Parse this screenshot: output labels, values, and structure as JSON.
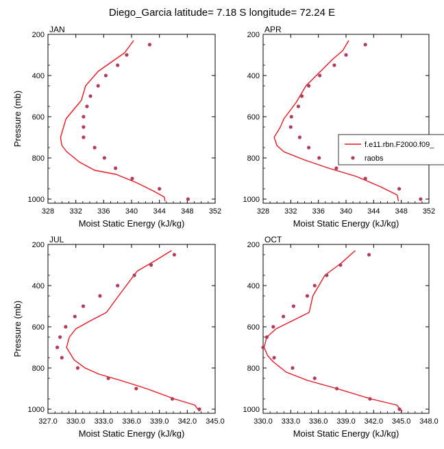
{
  "figure": {
    "title": "Diego_Garcia  latitude= 7.18 S longitude= 72.24 E"
  },
  "legend": {
    "placement": "inside APR panel, right side, clipped at figure edge",
    "entries": [
      {
        "label": "f.e11.rbn.F2000.f09_",
        "style": "line",
        "color": "#e8151d"
      },
      {
        "label": "raobs",
        "style": "marker",
        "color": "#b33c5c"
      }
    ]
  },
  "colors": {
    "model_line": "#e8151d",
    "raobs_marker": "#b33c5c"
  },
  "chart_data": [
    {
      "type": "line",
      "panel": "JAN",
      "xlabel": "Moist Static Energy (kJ/kg)",
      "ylabel": "Pressure (mb)",
      "xlim": [
        328,
        352
      ],
      "ylim": [
        200,
        1020
      ],
      "y_inverted": true,
      "xticks": [
        328,
        332,
        336,
        340,
        344,
        348,
        352
      ],
      "xtick_labels": [
        "328",
        "332",
        "336",
        "340",
        "344",
        "348",
        "352"
      ],
      "yticks": [
        200,
        400,
        600,
        800,
        1000
      ],
      "ytick_labels": [
        "200",
        "400",
        "600",
        "800",
        "1000"
      ],
      "series": [
        {
          "name": "f.e11.rbn.F2000.f09_",
          "kind": "line",
          "x": [
            340.3,
            339.0,
            337.3,
            335.2,
            333.4,
            332.8,
            330.6,
            329.8,
            330.0,
            330.7,
            332.5,
            334.7,
            337.8,
            340.7,
            343.1,
            344.7,
            344.8
          ],
          "y": [
            230,
            290,
            330,
            380,
            450,
            520,
            610,
            700,
            740,
            770,
            820,
            860,
            880,
            920,
            960,
            990,
            1010
          ]
        },
        {
          "name": "raobs",
          "kind": "marker",
          "x": [
            342.6,
            339.3,
            338.0,
            336.3,
            335.2,
            334.1,
            333.6,
            333.1,
            333.1,
            333.1,
            334.7,
            336.1,
            337.7,
            340.1,
            344.0,
            348.1
          ],
          "y": [
            250,
            300,
            350,
            400,
            450,
            500,
            550,
            600,
            650,
            700,
            750,
            800,
            850,
            900,
            950,
            1000
          ]
        }
      ]
    },
    {
      "type": "line",
      "panel": "APR",
      "xlabel": "Moist Static Energy (kJ/kg)",
      "ylabel": "",
      "xlim": [
        328,
        352
      ],
      "ylim": [
        200,
        1020
      ],
      "y_inverted": true,
      "xticks": [
        328,
        332,
        336,
        340,
        344,
        348,
        352
      ],
      "xtick_labels": [
        "328",
        "332",
        "336",
        "340",
        "344",
        "348",
        "352"
      ],
      "yticks": [
        200,
        400,
        600,
        800,
        1000
      ],
      "ytick_labels": [
        "200",
        "400",
        "600",
        "800",
        "1000"
      ],
      "series": [
        {
          "name": "f.e11.rbn.F2000.f09_",
          "kind": "line",
          "x": [
            340.4,
            339.5,
            338.1,
            336.3,
            334.2,
            332.8,
            331.0,
            330.5,
            329.6,
            330.0,
            331.0,
            334.0,
            337.5,
            341.5,
            345.0,
            347.4,
            347.6
          ],
          "y": [
            230,
            280,
            320,
            380,
            450,
            530,
            610,
            650,
            700,
            740,
            770,
            810,
            850,
            890,
            940,
            980,
            1010
          ]
        },
        {
          "name": "raobs",
          "kind": "marker",
          "x": [
            342.8,
            340.0,
            338.3,
            336.2,
            334.6,
            333.6,
            333.1,
            332.1,
            332.0,
            333.3,
            334.6,
            336.1,
            338.6,
            342.8,
            347.7,
            350.8
          ],
          "y": [
            250,
            300,
            350,
            400,
            450,
            500,
            550,
            600,
            650,
            700,
            750,
            800,
            850,
            900,
            950,
            1000
          ]
        }
      ]
    },
    {
      "type": "line",
      "panel": "JUL",
      "xlabel": "Moist Static Energy (kJ/kg)",
      "ylabel": "Pressure (mb)",
      "xlim": [
        327,
        345
      ],
      "ylim": [
        200,
        1020
      ],
      "y_inverted": true,
      "xticks": [
        327,
        330,
        333,
        336,
        339,
        342,
        345
      ],
      "xtick_labels": [
        "327.0",
        "330.0",
        "333.0",
        "336.0",
        "339.0",
        "342.0",
        "345.0"
      ],
      "yticks": [
        200,
        400,
        600,
        800,
        1000
      ],
      "ytick_labels": [
        "200",
        "400",
        "600",
        "800",
        "1000"
      ],
      "series": [
        {
          "name": "f.e11.rbn.F2000.f09_",
          "kind": "line",
          "x": [
            340.3,
            338.5,
            336.6,
            334.6,
            333.3,
            331.6,
            330.0,
            329.3,
            329.0,
            329.8,
            331.0,
            332.5,
            334.8,
            337.6,
            340.6,
            342.8,
            343.3
          ],
          "y": [
            230,
            280,
            330,
            450,
            530,
            570,
            610,
            650,
            700,
            760,
            800,
            830,
            860,
            900,
            950,
            980,
            1010
          ]
        },
        {
          "name": "raobs",
          "kind": "marker",
          "x": [
            340.6,
            338.1,
            336.3,
            334.5,
            332.6,
            330.8,
            329.9,
            328.9,
            328.3,
            328.0,
            328.5,
            330.2,
            333.5,
            336.5,
            340.4,
            343.3
          ],
          "y": [
            250,
            300,
            350,
            400,
            450,
            500,
            550,
            600,
            650,
            700,
            750,
            800,
            850,
            900,
            950,
            1000
          ]
        }
      ]
    },
    {
      "type": "line",
      "panel": "OCT",
      "xlabel": "Moist Static Energy (kJ/kg)",
      "ylabel": "",
      "xlim": [
        330,
        348
      ],
      "ylim": [
        200,
        1020
      ],
      "y_inverted": true,
      "xticks": [
        330,
        333,
        336,
        339,
        342,
        345,
        348
      ],
      "xtick_labels": [
        "330.0",
        "333.0",
        "336.0",
        "339.0",
        "342.0",
        "345.0",
        "348.0"
      ],
      "yticks": [
        200,
        400,
        600,
        800,
        1000
      ],
      "ytick_labels": [
        "200",
        "400",
        "600",
        "800",
        "1000"
      ],
      "series": [
        {
          "name": "f.e11.rbn.F2000.f09_",
          "kind": "line",
          "x": [
            340.0,
            338.5,
            336.7,
            335.4,
            335.0,
            333.2,
            331.4,
            330.4,
            330.1,
            330.5,
            331.1,
            332.5,
            334.8,
            338.0,
            341.7,
            344.5,
            345.1
          ],
          "y": [
            230,
            290,
            350,
            450,
            530,
            570,
            610,
            650,
            700,
            740,
            770,
            820,
            860,
            900,
            950,
            980,
            1010
          ]
        },
        {
          "name": "raobs",
          "kind": "marker",
          "x": [
            341.5,
            338.4,
            336.9,
            335.6,
            334.8,
            333.3,
            332.2,
            331.1,
            330.4,
            330.0,
            331.2,
            333.2,
            335.6,
            338.0,
            341.6,
            344.8
          ],
          "y": [
            250,
            300,
            350,
            400,
            450,
            500,
            550,
            600,
            650,
            700,
            750,
            800,
            850,
            900,
            950,
            1000
          ]
        }
      ]
    }
  ]
}
